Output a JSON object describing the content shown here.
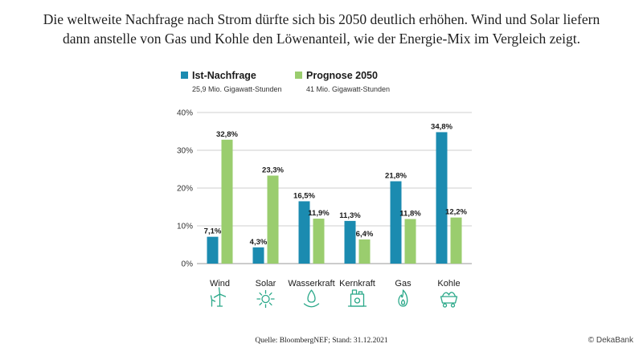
{
  "headline": {
    "line1": "Die weltweite Nachfrage nach Strom dürfte sich bis 2050 deutlich erhöhen. Wind und Solar liefern",
    "line2": "dann anstelle von Gas und Kohle den Löwenanteil, wie der Energie-Mix im Vergleich zeigt."
  },
  "chart_data": {
    "type": "bar",
    "categories": [
      "Wind",
      "Solar",
      "Wasserkraft",
      "Kernkraft",
      "Gas",
      "Kohle"
    ],
    "category_icons": [
      "wind-turbine-icon",
      "sun-icon",
      "water-drop-icon",
      "nuclear-plant-icon",
      "flame-icon",
      "coal-cart-icon"
    ],
    "series": [
      {
        "name": "Ist-Nachfrage",
        "subtitle": "25,9 Mio. Gigawatt-Stunden",
        "color": "#1b8bb0",
        "values": [
          7.1,
          4.3,
          16.5,
          11.3,
          21.8,
          34.8
        ]
      },
      {
        "name": "Prognose 2050",
        "subtitle": "41 Mio. Gigawatt-Stunden",
        "color": "#9acd6e",
        "values": [
          32.8,
          23.3,
          11.9,
          6.4,
          11.8,
          12.2
        ]
      }
    ],
    "value_labels": [
      [
        "7,1%",
        "4,3%",
        "16,5%",
        "11,3%",
        "21,8%",
        "34,8%"
      ],
      [
        "32,8%",
        "23,3%",
        "11,9%",
        "6,4%",
        "11,8%",
        "12,2%"
      ]
    ],
    "yticks": [
      0,
      10,
      20,
      30,
      40
    ],
    "ytick_labels": [
      "0%",
      "10%",
      "20%",
      "30%",
      "40%"
    ],
    "ylim": [
      0,
      40
    ],
    "grid": true,
    "legend_position": "top-left",
    "icon_color": "#2aa889"
  },
  "footer": {
    "source": "Quelle: BloombergNEF; Stand: 31.12.2021",
    "brand": "© DekaBank"
  }
}
